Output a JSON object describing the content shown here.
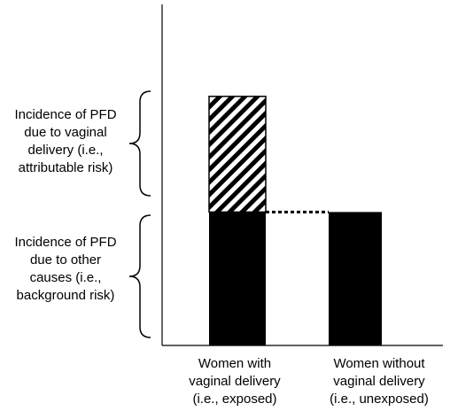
{
  "chart_data": {
    "type": "bar",
    "stacked": true,
    "categories": [
      "Women with vaginal delivery (i.e., exposed)",
      "Women without vaginal delivery (i.e., unexposed)"
    ],
    "series": [
      {
        "fill": "solid-black",
        "values": [
          0.45,
          0.45
        ]
      },
      {
        "fill": "diagonal-hatch",
        "values": [
          0.39,
          0
        ]
      }
    ],
    "ylim": [
      0,
      1.15
    ],
    "grid": false,
    "axis_ticks": false,
    "reference_line": {
      "style": "dotted",
      "value": 0.45
    },
    "annotations": [
      "Incidence of PFD due to vaginal delivery (i.e., attributable risk)",
      "Incidence of PFD due to other causes (i.e., background risk)"
    ]
  },
  "labels": {
    "attributable": [
      "Incidence of PFD",
      "due to vaginal",
      "delivery (i.e.,",
      "attributable risk)"
    ],
    "background": [
      "Incidence of PFD",
      "due to other",
      "causes (i.e.,",
      "background risk)"
    ],
    "categories": [
      [
        "Women with",
        "vaginal delivery",
        "(i.e., exposed)"
      ],
      [
        "Women without",
        "vaginal delivery",
        "(i.e., unexposed)"
      ]
    ]
  },
  "colors": {
    "bar": "#000000",
    "background": "#ffffff"
  }
}
